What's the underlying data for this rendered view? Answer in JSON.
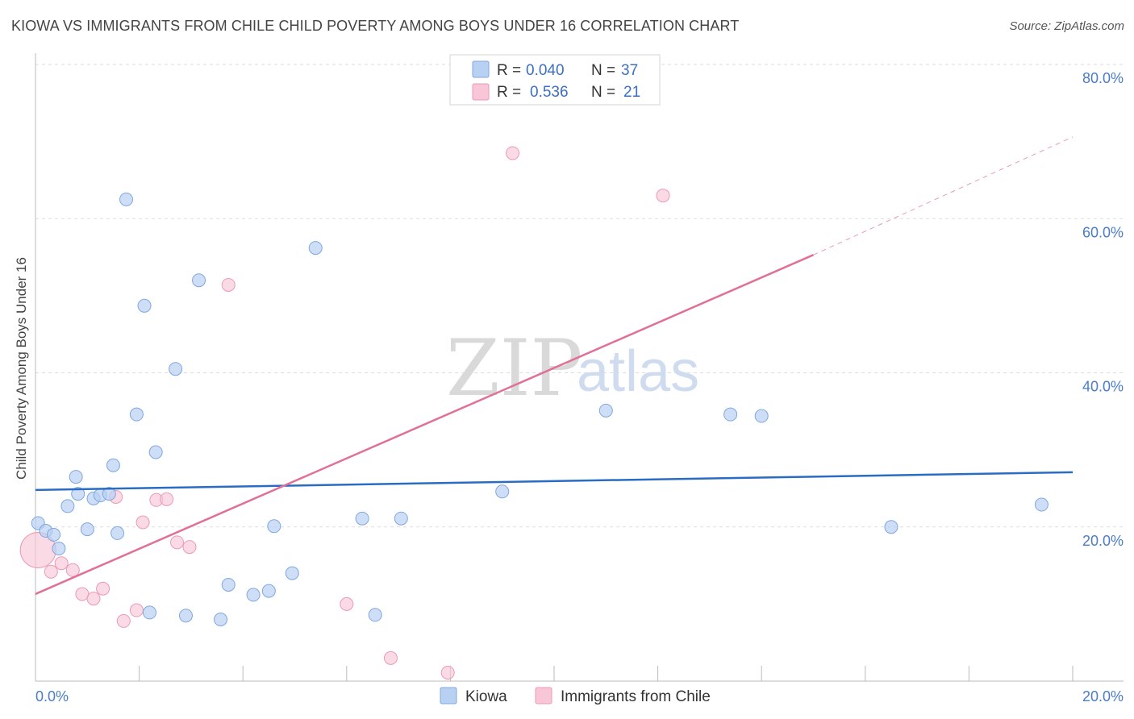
{
  "title": "KIOWA VS IMMIGRANTS FROM CHILE CHILD POVERTY AMONG BOYS UNDER 16 CORRELATION CHART",
  "source": "Source: ZipAtlas.com",
  "watermark": {
    "zip": "ZIP",
    "atlas": "atlas"
  },
  "colors": {
    "kiowa_fill": "#b8d0f2",
    "kiowa_stroke": "#7fa7e0",
    "kiowa_line": "#2a6cc4",
    "chile_fill": "#f8c6d6",
    "chile_stroke": "#ec9ab4",
    "chile_line": "#e07098",
    "grid": "#dddddd",
    "axis_text": "#4a7cc9"
  },
  "legend": {
    "rows": [
      {
        "r_label": "R = ",
        "r_value": "0.040",
        "n_label": "N = ",
        "n_value": "37"
      },
      {
        "r_label": "R = ",
        "r_value": "0.536",
        "n_label": "N = ",
        "n_value": "21"
      }
    ]
  },
  "chart_data": {
    "type": "scatter",
    "title": "KIOWA VS IMMIGRANTS FROM CHILE CHILD POVERTY AMONG BOYS UNDER 16 CORRELATION CHART",
    "xlabel": "",
    "ylabel": "Child Poverty Among Boys Under 16",
    "xlim": [
      0,
      20
    ],
    "ylim": [
      0,
      80
    ],
    "x_tick_labels": [
      "0.0%",
      "20.0%"
    ],
    "y_ticks": [
      20,
      40,
      60,
      80
    ],
    "y_tick_labels": [
      "20.0%",
      "40.0%",
      "60.0%",
      "80.0%"
    ],
    "grid": true,
    "legend_position": "bottom",
    "series": [
      {
        "name": "Kiowa",
        "r": 0.04,
        "n": 37,
        "trend": {
          "x": [
            0,
            20
          ],
          "y": [
            24.8,
            27.1
          ]
        },
        "points": [
          [
            0.05,
            20.5
          ],
          [
            0.2,
            19.5
          ],
          [
            0.35,
            19.0
          ],
          [
            0.45,
            17.2
          ],
          [
            0.62,
            22.7
          ],
          [
            0.78,
            26.5
          ],
          [
            0.82,
            24.3
          ],
          [
            1.0,
            19.7
          ],
          [
            1.12,
            23.7
          ],
          [
            1.25,
            24.1
          ],
          [
            1.42,
            24.3
          ],
          [
            1.5,
            28.0
          ],
          [
            1.58,
            19.2
          ],
          [
            1.75,
            62.5
          ],
          [
            1.95,
            34.6
          ],
          [
            2.1,
            48.7
          ],
          [
            2.2,
            8.9
          ],
          [
            2.32,
            29.7
          ],
          [
            2.7,
            40.5
          ],
          [
            2.9,
            8.5
          ],
          [
            3.15,
            52.0
          ],
          [
            3.57,
            8.0
          ],
          [
            3.72,
            12.5
          ],
          [
            4.2,
            11.2
          ],
          [
            4.5,
            11.7
          ],
          [
            4.6,
            20.1
          ],
          [
            4.95,
            14.0
          ],
          [
            5.4,
            56.2
          ],
          [
            6.3,
            21.1
          ],
          [
            6.55,
            8.6
          ],
          [
            7.05,
            21.1
          ],
          [
            9.0,
            24.6
          ],
          [
            11.0,
            35.1
          ],
          [
            13.4,
            34.6
          ],
          [
            14.0,
            34.4
          ],
          [
            16.5,
            20.0
          ],
          [
            19.4,
            22.9
          ]
        ]
      },
      {
        "name": "Immigrants from Chile",
        "r": 0.536,
        "n": 21,
        "trend": {
          "x": [
            0,
            15
          ],
          "y": [
            11.3,
            55.3
          ]
        },
        "trend_dashed": {
          "x": [
            15,
            20
          ],
          "y": [
            55.3,
            70.6
          ]
        },
        "points": [
          [
            0.05,
            17.0
          ],
          [
            0.3,
            14.2
          ],
          [
            0.5,
            15.3
          ],
          [
            0.72,
            14.4
          ],
          [
            0.9,
            11.3
          ],
          [
            1.12,
            10.7
          ],
          [
            1.3,
            12.0
          ],
          [
            1.55,
            23.9
          ],
          [
            1.7,
            7.8
          ],
          [
            1.95,
            9.2
          ],
          [
            2.07,
            20.6
          ],
          [
            2.33,
            23.5
          ],
          [
            2.53,
            23.6
          ],
          [
            2.73,
            18.0
          ],
          [
            2.97,
            17.4
          ],
          [
            3.72,
            51.4
          ],
          [
            6.0,
            10.0
          ],
          [
            6.85,
            3.0
          ],
          [
            7.95,
            1.1
          ],
          [
            9.2,
            68.5
          ],
          [
            12.1,
            63.0
          ]
        ]
      }
    ]
  }
}
